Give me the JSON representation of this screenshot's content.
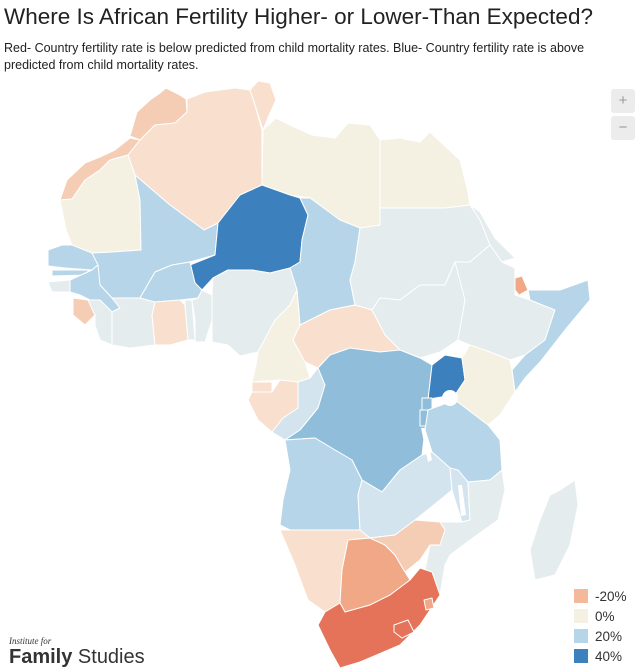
{
  "title": "Where Is African Fertility Higher- or Lower-Than Expected?",
  "subtitle": "Red- Country fertility rate is below predicted from child mortality rates. Blue- Country fertility rate is above predicted from child mortality rates.",
  "zoom": {
    "in_label": "+",
    "out_label": "−"
  },
  "legend": [
    {
      "label": "-20%",
      "color": "#f4b89b"
    },
    {
      "label": "0%",
      "color": "#f4f1e3"
    },
    {
      "label": "20%",
      "color": "#b7d5e8"
    },
    {
      "label": "40%",
      "color": "#3c80bd"
    }
  ],
  "colors": {
    "ocean": "#ffffff",
    "border": "#ffffff",
    "deep_red": "#e5735a",
    "mid_red": "#f0a886",
    "light_red": "#f5cdb5",
    "pale_red": "#f9dfce",
    "cream": "#f4f1e3",
    "pale_gray_blue": "#e4ecee",
    "pale_blue": "#d3e4ef",
    "light_blue": "#b7d5e8",
    "mid_blue": "#8fbdda",
    "deep_blue": "#3c80bd"
  },
  "countries": [
    {
      "name": "Morocco",
      "fill": "light_red",
      "value": -15
    },
    {
      "name": "Western Sahara",
      "fill": "light_red",
      "value": -15
    },
    {
      "name": "Algeria",
      "fill": "pale_red",
      "value": -8
    },
    {
      "name": "Tunisia",
      "fill": "pale_red",
      "value": -8
    },
    {
      "name": "Libya",
      "fill": "cream",
      "value": 0
    },
    {
      "name": "Egypt",
      "fill": "cream",
      "value": 0
    },
    {
      "name": "Mauritania",
      "fill": "cream",
      "value": 0
    },
    {
      "name": "Mali",
      "fill": "light_blue",
      "value": 20
    },
    {
      "name": "Niger",
      "fill": "deep_blue",
      "value": 40
    },
    {
      "name": "Chad",
      "fill": "light_blue",
      "value": 18
    },
    {
      "name": "Sudan",
      "fill": "pale_gray_blue",
      "value": 5
    },
    {
      "name": "South Sudan",
      "fill": "pale_gray_blue",
      "value": 4
    },
    {
      "name": "Eritrea",
      "fill": "pale_gray_blue",
      "value": 4
    },
    {
      "name": "Djibouti",
      "fill": "mid_red",
      "value": -20
    },
    {
      "name": "Ethiopia",
      "fill": "pale_gray_blue",
      "value": 4
    },
    {
      "name": "Somalia",
      "fill": "light_blue",
      "value": 18
    },
    {
      "name": "Senegal",
      "fill": "light_blue",
      "value": 15
    },
    {
      "name": "Gambia",
      "fill": "light_blue",
      "value": 15
    },
    {
      "name": "Guinea-Bissau",
      "fill": "pale_gray_blue",
      "value": 5
    },
    {
      "name": "Guinea",
      "fill": "light_blue",
      "value": 15
    },
    {
      "name": "Sierra Leone",
      "fill": "light_red",
      "value": -12
    },
    {
      "name": "Liberia",
      "fill": "pale_gray_blue",
      "value": 4
    },
    {
      "name": "Côte d'Ivoire",
      "fill": "pale_gray_blue",
      "value": 4
    },
    {
      "name": "Burkina Faso",
      "fill": "light_blue",
      "value": 16
    },
    {
      "name": "Ghana",
      "fill": "pale_red",
      "value": -8
    },
    {
      "name": "Togo",
      "fill": "pale_gray_blue",
      "value": 4
    },
    {
      "name": "Benin",
      "fill": "pale_gray_blue",
      "value": 4
    },
    {
      "name": "Nigeria",
      "fill": "pale_gray_blue",
      "value": 5
    },
    {
      "name": "Cameroon",
      "fill": "cream",
      "value": 0
    },
    {
      "name": "Central African Republic",
      "fill": "pale_red",
      "value": -8
    },
    {
      "name": "Equatorial Guinea",
      "fill": "pale_red",
      "value": -8
    },
    {
      "name": "Gabon",
      "fill": "pale_red",
      "value": -8
    },
    {
      "name": "Republic of the Congo",
      "fill": "pale_blue",
      "value": 10
    },
    {
      "name": "DR Congo",
      "fill": "mid_blue",
      "value": 27
    },
    {
      "name": "Uganda",
      "fill": "deep_blue",
      "value": 40
    },
    {
      "name": "Kenya",
      "fill": "cream",
      "value": 0
    },
    {
      "name": "Rwanda",
      "fill": "mid_blue",
      "value": 27
    },
    {
      "name": "Burundi",
      "fill": "mid_blue",
      "value": 27
    },
    {
      "name": "Tanzania",
      "fill": "light_blue",
      "value": 20
    },
    {
      "name": "Angola",
      "fill": "light_blue",
      "value": 18
    },
    {
      "name": "Zambia",
      "fill": "pale_blue",
      "value": 10
    },
    {
      "name": "Malawi",
      "fill": "pale_blue",
      "value": 10
    },
    {
      "name": "Mozambique",
      "fill": "pale_gray_blue",
      "value": 4
    },
    {
      "name": "Madagascar",
      "fill": "pale_gray_blue",
      "value": 4
    },
    {
      "name": "Namibia",
      "fill": "pale_red",
      "value": -8
    },
    {
      "name": "Botswana",
      "fill": "mid_red",
      "value": -22
    },
    {
      "name": "Zimbabwe",
      "fill": "light_red",
      "value": -12
    },
    {
      "name": "South Africa",
      "fill": "deep_red",
      "value": -30
    },
    {
      "name": "Lesotho",
      "fill": "deep_red",
      "value": -30
    },
    {
      "name": "Eswatini",
      "fill": "mid_red",
      "value": -20
    }
  ],
  "brand": {
    "line1": "Institute for",
    "bold": "Family",
    "rest": " Studies"
  }
}
